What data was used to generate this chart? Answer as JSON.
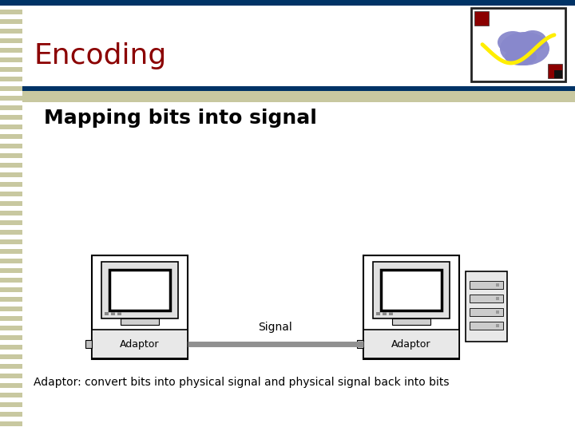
{
  "title": "Encoding",
  "subtitle": "Mapping bits into signal",
  "caption": "Adaptor: convert bits into physical signal and physical signal back into bits",
  "signal_label": "Signal",
  "adaptor_label": "Adaptor",
  "bg_color": "#ffffff",
  "left_stripe_color": "#c8c8a0",
  "left_stripe_dark": "#a0a060",
  "title_color": "#8b0000",
  "title_fontsize": 26,
  "subtitle_fontsize": 18,
  "caption_fontsize": 10,
  "top_bar_color": "#003366",
  "top_bar2_color": "#c8c8a0",
  "signal_line_color": "#909090",
  "adaptor_box_color": "#e8e8e8"
}
